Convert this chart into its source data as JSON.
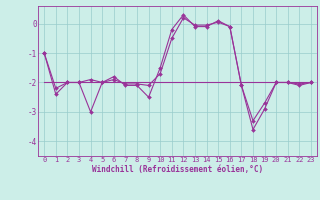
{
  "x": [
    0,
    1,
    2,
    3,
    4,
    5,
    6,
    7,
    8,
    9,
    10,
    11,
    12,
    13,
    14,
    15,
    16,
    17,
    18,
    19,
    20,
    21,
    22,
    23
  ],
  "y_main": [
    -1.0,
    -2.4,
    -2.0,
    -2.0,
    -3.0,
    -2.0,
    -1.8,
    -2.1,
    -2.1,
    -2.5,
    -1.5,
    -0.2,
    0.3,
    -0.1,
    -0.1,
    0.1,
    -0.1,
    -2.1,
    -3.6,
    -2.9,
    -2.0,
    -2.0,
    -2.1,
    -2.0
  ],
  "y_smooth": [
    -1.0,
    -2.2,
    -2.0,
    -2.0,
    -1.9,
    -2.0,
    -1.9,
    -2.05,
    -2.05,
    -2.1,
    -1.7,
    -0.5,
    0.2,
    -0.05,
    -0.05,
    0.05,
    -0.1,
    -2.1,
    -3.3,
    -2.7,
    -2.0,
    -2.0,
    -2.05,
    -2.0
  ],
  "y_avg": [
    -2.0,
    -2.0,
    -2.0,
    -2.0,
    -2.0,
    -2.0,
    -2.0,
    -2.0,
    -2.0,
    -2.0,
    -2.0,
    -2.0,
    -2.0,
    -2.0,
    -2.0,
    -2.0,
    -2.0,
    -2.0,
    -2.0,
    -2.0,
    -2.0,
    -2.0,
    -2.0,
    -2.0
  ],
  "background_color": "#cceee8",
  "line_color": "#993399",
  "grid_color": "#99cccc",
  "xlabel": "Windchill (Refroidissement éolien,°C)",
  "xlim": [
    -0.5,
    23.5
  ],
  "ylim": [
    -4.5,
    0.6
  ],
  "yticks": [
    0,
    -1,
    -2,
    -3,
    -4
  ],
  "xticks": [
    0,
    1,
    2,
    3,
    4,
    5,
    6,
    7,
    8,
    9,
    10,
    11,
    12,
    13,
    14,
    15,
    16,
    17,
    18,
    19,
    20,
    21,
    22,
    23
  ],
  "tick_fontsize": 5,
  "xlabel_fontsize": 5.5,
  "marker_size": 2.0,
  "line_width": 0.8
}
